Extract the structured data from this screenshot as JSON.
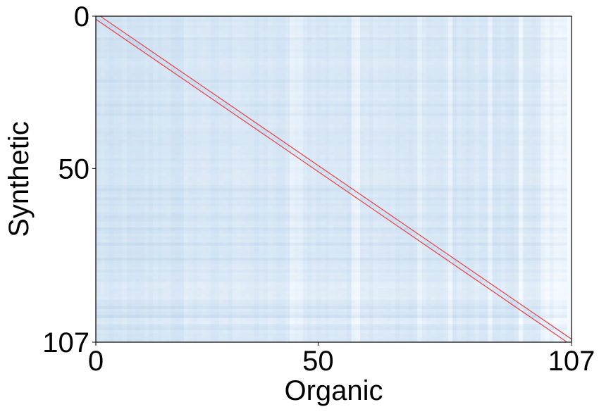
{
  "chart_data": {
    "type": "heatmap",
    "title": "",
    "xlabel": "Organic",
    "ylabel": "Synthetic",
    "x_ticks": [
      0,
      50,
      107
    ],
    "y_ticks": [
      0,
      50,
      107
    ],
    "x_tick_labels": [
      "0",
      "50",
      "107"
    ],
    "y_tick_labels": [
      "0",
      "50",
      "107"
    ],
    "n_cols": 108,
    "n_rows": 108,
    "value_range": [
      0,
      1
    ],
    "colormap": "Blues",
    "colormap_stops": [
      "#f7fbff",
      "#deebf7",
      "#c6dbef",
      "#9ecae1"
    ],
    "diagonal_band": {
      "color": "#e8474c",
      "upper_offset": 1,
      "lower_offset": -1
    },
    "dark_rows": [
      7,
      21,
      29,
      32,
      57,
      60,
      66,
      70,
      75,
      80,
      96,
      99,
      103
    ],
    "light_rows": [
      88,
      89,
      90,
      91,
      92,
      93,
      100,
      101
    ],
    "light_cols": [
      44,
      45,
      46,
      58,
      59,
      73,
      80,
      89,
      96,
      101,
      102,
      103,
      104,
      105,
      106,
      107
    ],
    "grid": false,
    "legend": "none"
  }
}
